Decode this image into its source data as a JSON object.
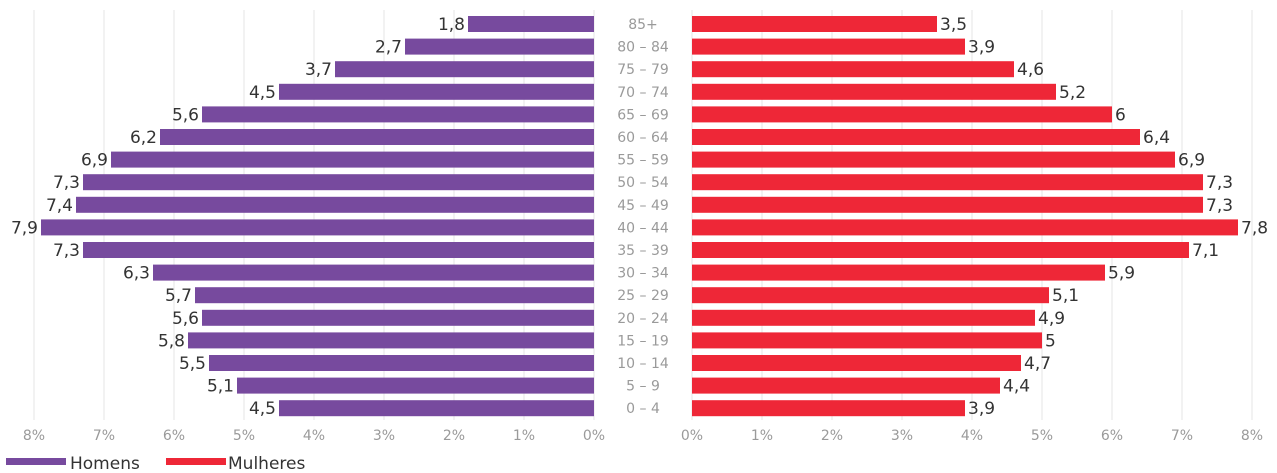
{
  "chart_data": {
    "type": "bar",
    "orientation": "horizontal-population-pyramid",
    "categories": [
      "85+",
      "80 – 84",
      "75 – 79",
      "70 – 74",
      "65 – 69",
      "60 – 64",
      "55 – 59",
      "50 – 54",
      "45 – 49",
      "40 – 44",
      "35 – 39",
      "30 – 34",
      "25 – 29",
      "20 – 24",
      "15 – 19",
      "10 – 14",
      "5 – 9",
      "0 – 4"
    ],
    "series": [
      {
        "name": "Homens",
        "color": "#774A9E",
        "values": [
          1.8,
          2.7,
          3.7,
          4.5,
          5.6,
          6.2,
          6.9,
          7.3,
          7.4,
          7.9,
          7.3,
          6.3,
          5.7,
          5.6,
          5.8,
          5.5,
          5.1,
          4.5
        ],
        "labels": [
          "1,8",
          "2,7",
          "3,7",
          "4,5",
          "5,6",
          "6,2",
          "6,9",
          "7,3",
          "7,4",
          "7,9",
          "7,3",
          "6,3",
          "5,7",
          "5,6",
          "5,8",
          "5,5",
          "5,1",
          "4,5"
        ]
      },
      {
        "name": "Mulheres",
        "color": "#EE2737",
        "values": [
          3.5,
          3.9,
          4.6,
          5.2,
          6,
          6.4,
          6.9,
          7.3,
          7.3,
          7.8,
          7.1,
          5.9,
          5.1,
          4.9,
          5,
          4.7,
          4.4,
          3.9
        ],
        "labels": [
          "3,5",
          "3,9",
          "4,6",
          "5,2",
          "6",
          "6,4",
          "6,9",
          "7,3",
          "7,3",
          "7,8",
          "7,1",
          "5,9",
          "5,1",
          "4,9",
          "5",
          "4,7",
          "4,4",
          "3,9"
        ]
      }
    ],
    "xlim": [
      0,
      8
    ],
    "left_ticks": [
      "8%",
      "7%",
      "6%",
      "5%",
      "4%",
      "3%",
      "2%",
      "1%",
      "0%"
    ],
    "right_ticks": [
      "0%",
      "1%",
      "2%",
      "3%",
      "4%",
      "5%",
      "6%",
      "7%",
      "8%"
    ],
    "grid": true,
    "legend_position": "bottom-left",
    "legend": [
      "Homens",
      "Mulheres"
    ]
  }
}
